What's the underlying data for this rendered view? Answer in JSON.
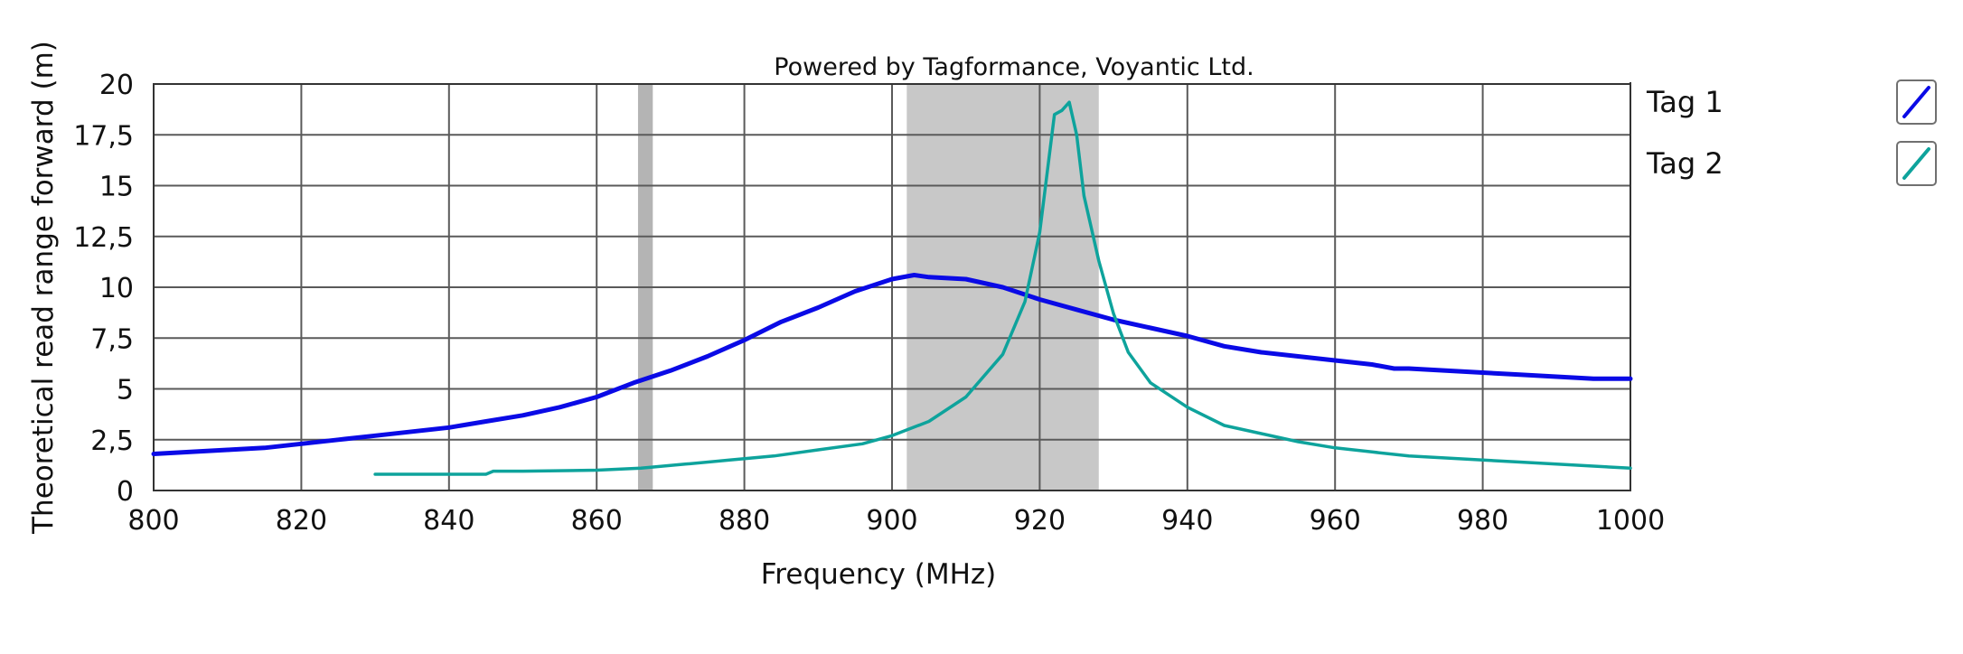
{
  "chart_data": {
    "type": "line",
    "title": "Powered by Tagformance, Voyantic Ltd.",
    "xlabel": "Frequency (MHz)",
    "ylabel": "Theoretical read range forward (m)",
    "xlim": [
      800,
      1000
    ],
    "ylim": [
      0,
      20
    ],
    "x_ticks": [
      800,
      820,
      840,
      860,
      880,
      900,
      920,
      940,
      960,
      980,
      1000
    ],
    "y_ticks": [
      0,
      2.5,
      5,
      7.5,
      10,
      12.5,
      15,
      17.5,
      20
    ],
    "x_tick_labels": [
      "800",
      "820",
      "840",
      "860",
      "880",
      "900",
      "920",
      "940",
      "960",
      "980",
      "1000"
    ],
    "y_tick_labels": [
      "0",
      "2,5",
      "5",
      "7,5",
      "10",
      "12,5",
      "15",
      "17,5",
      "20"
    ],
    "grid": true,
    "legend_position": "right",
    "shaded_bands": [
      {
        "x_start": 865.6,
        "x_end": 867.6,
        "color": "#b4b4b4"
      },
      {
        "x_start": 902,
        "x_end": 928,
        "color": "#c8c8c8"
      }
    ],
    "series": [
      {
        "name": "Tag 1",
        "color": "#0a0ae6",
        "x": [
          800,
          805,
          810,
          815,
          820,
          825,
          830,
          835,
          840,
          845,
          850,
          855,
          860,
          865,
          870,
          875,
          880,
          885,
          890,
          895,
          900,
          903,
          905,
          910,
          915,
          920,
          925,
          930,
          935,
          940,
          945,
          950,
          955,
          960,
          965,
          968,
          970,
          975,
          980,
          985,
          990,
          995,
          1000
        ],
        "y": [
          1.8,
          1.9,
          2.0,
          2.1,
          2.3,
          2.5,
          2.7,
          2.9,
          3.1,
          3.4,
          3.7,
          4.1,
          4.6,
          5.3,
          5.9,
          6.6,
          7.4,
          8.3,
          9.0,
          9.8,
          10.4,
          10.6,
          10.5,
          10.4,
          10.0,
          9.4,
          8.9,
          8.4,
          8.0,
          7.6,
          7.1,
          6.8,
          6.6,
          6.4,
          6.2,
          6.0,
          6.0,
          5.9,
          5.8,
          5.7,
          5.6,
          5.5,
          5.5
        ]
      },
      {
        "name": "Tag 2",
        "color": "#0ea39c",
        "x": [
          830,
          840,
          845,
          846,
          850,
          860,
          866,
          872,
          878,
          884,
          890,
          896,
          900,
          905,
          910,
          915,
          918,
          920,
          922,
          923,
          924,
          925,
          926,
          928,
          930,
          932,
          935,
          940,
          945,
          950,
          955,
          960,
          965,
          970,
          975,
          980,
          985,
          990,
          995,
          1000
        ],
        "y": [
          0.8,
          0.8,
          0.8,
          0.95,
          0.95,
          1.0,
          1.1,
          1.3,
          1.5,
          1.7,
          2.0,
          2.3,
          2.7,
          3.4,
          4.6,
          6.7,
          9.3,
          12.7,
          18.5,
          18.7,
          19.1,
          17.5,
          14.5,
          11.3,
          8.7,
          6.8,
          5.3,
          4.1,
          3.2,
          2.8,
          2.4,
          2.1,
          1.9,
          1.7,
          1.6,
          1.5,
          1.4,
          1.3,
          1.2,
          1.1
        ]
      }
    ]
  }
}
